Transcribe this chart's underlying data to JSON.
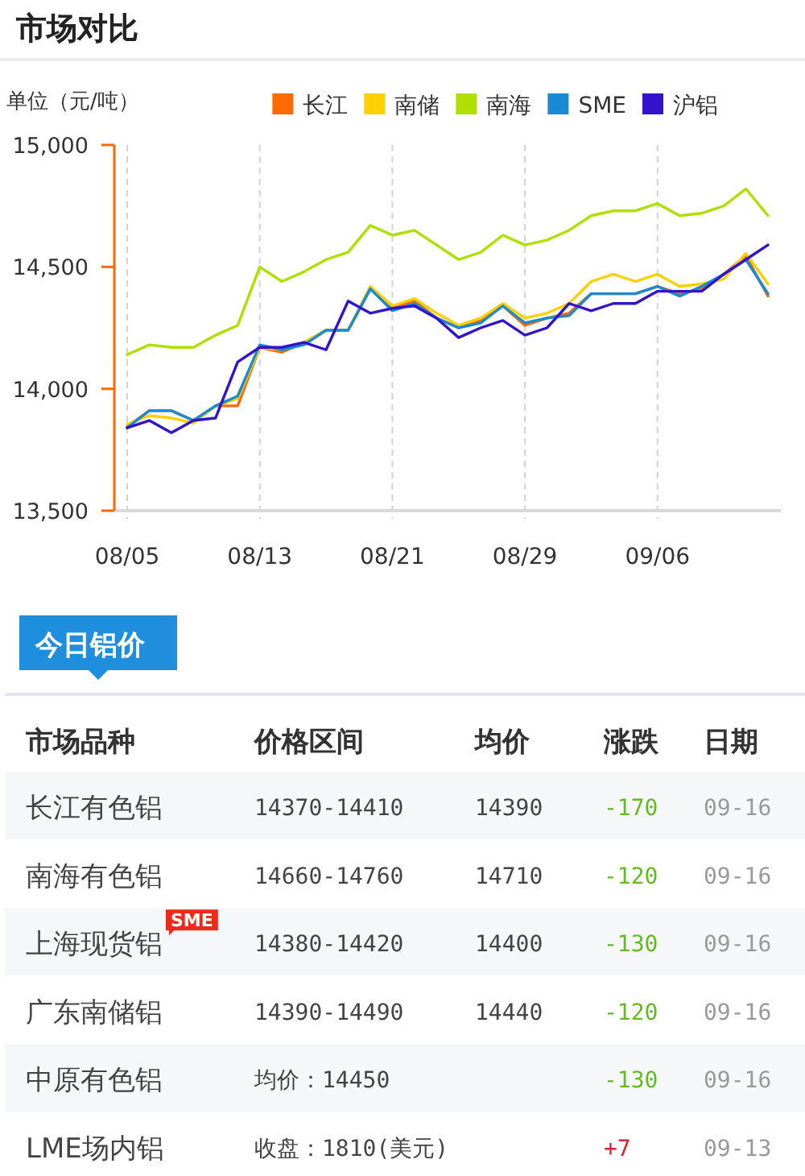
{
  "chart_data": [
    {
      "type": "line",
      "title": "市场对比",
      "ylabel": "单位（元/吨）",
      "categories": [
        "08/05",
        null,
        null,
        null,
        null,
        null,
        "08/13",
        null,
        null,
        null,
        null,
        null,
        "08/21",
        null,
        null,
        null,
        null,
        null,
        "08/29",
        null,
        null,
        null,
        null,
        null,
        "09/06",
        null,
        null,
        null,
        null,
        null
      ],
      "series": [
        {
          "name": "长江",
          "color": "#ff6a00",
          "values": [
            13845,
            13910,
            13910,
            13870,
            13930,
            13930,
            14170,
            14150,
            14190,
            14240,
            14240,
            14410,
            14330,
            14360,
            14290,
            14250,
            14280,
            14340,
            14260,
            14290,
            14310,
            14390,
            14390,
            14390,
            14420,
            14390,
            14410,
            14470,
            14545,
            14380
          ]
        },
        {
          "name": "南储",
          "color": "#ffd000",
          "values": [
            13855,
            13890,
            13880,
            13860,
            13930,
            13960,
            14170,
            14160,
            14190,
            14240,
            14240,
            14420,
            14340,
            14370,
            14310,
            14260,
            14290,
            14350,
            14290,
            14310,
            14350,
            14440,
            14470,
            14440,
            14470,
            14420,
            14430,
            14450,
            14555,
            14430
          ]
        },
        {
          "name": "南海",
          "color": "#aee000",
          "values": [
            14140,
            14180,
            14170,
            14170,
            14220,
            14260,
            14500,
            14440,
            14480,
            14530,
            14560,
            14670,
            14630,
            14650,
            14590,
            14530,
            14560,
            14630,
            14590,
            14610,
            14650,
            14710,
            14730,
            14730,
            14760,
            14710,
            14720,
            14750,
            14820,
            14710
          ]
        },
        {
          "name": "SME",
          "color": "#1a8ad4",
          "values": [
            13840,
            13910,
            13910,
            13870,
            13930,
            13970,
            14180,
            14160,
            14180,
            14240,
            14240,
            14410,
            14320,
            14350,
            14290,
            14250,
            14270,
            14340,
            14270,
            14290,
            14300,
            14390,
            14390,
            14390,
            14420,
            14380,
            14420,
            14470,
            14530,
            14390
          ]
        },
        {
          "name": "沪铝",
          "color": "#3214cc",
          "values": [
            13840,
            13870,
            13820,
            13870,
            13880,
            14110,
            14170,
            14170,
            14190,
            14160,
            14360,
            14310,
            14330,
            14340,
            14290,
            14210,
            14250,
            14280,
            14220,
            14250,
            14350,
            14320,
            14350,
            14350,
            14400,
            14400,
            14400,
            14470,
            14530,
            14590
          ]
        }
      ],
      "ylim": [
        13500,
        15000
      ],
      "yticks": [
        {
          "value": 13500,
          "label": "13,500"
        },
        {
          "value": 14000,
          "label": "14,000"
        },
        {
          "value": 14500,
          "label": "14,500"
        },
        {
          "value": 15000,
          "label": "15,000"
        }
      ],
      "grid": "x",
      "legend": "top right"
    },
    {
      "type": "other",
      "title": "今日铝价",
      "categories": [
        "市场品种",
        "价格区间",
        "均价",
        "涨跌",
        "日期"
      ],
      "y_categories": [
        "长江有色铝",
        "南海有色铝",
        "上海现货铝",
        "广东南储铝",
        "中原有色铝",
        "LME场内铝"
      ],
      "cell_labels": [
        [
          "14370-14410",
          "14390",
          "-170",
          "09-16"
        ],
        [
          "14660-14760",
          "14710",
          "-120",
          "09-16"
        ],
        [
          "14380-14420",
          "14400",
          "-130",
          "09-16"
        ],
        [
          "14390-14490",
          "14440",
          "-120",
          "09-16"
        ],
        [
          "均价：14450",
          null,
          "-130",
          "09-16"
        ],
        [
          "收盘：1810(美元)",
          null,
          "+7",
          "09-13"
        ]
      ],
      "colors": [
        "#66bb22",
        "#66bb22",
        "#66bb22",
        "#66bb22",
        "#66bb22",
        "#dd2233"
      ],
      "annotations": [
        {
          "text": "SME",
          "y": "上海现货铝"
        }
      ]
    }
  ]
}
